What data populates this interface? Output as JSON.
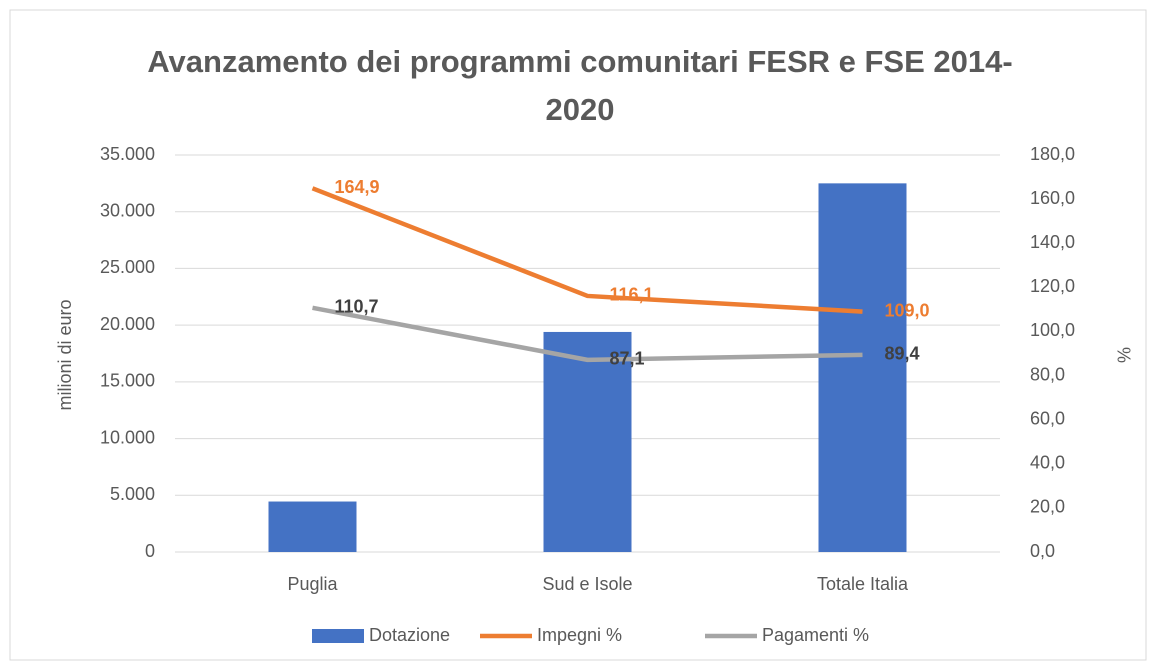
{
  "chart_data": {
    "type": "combo",
    "title": "Avanzamento dei programmi comunitari FESR e FSE 2014-2020",
    "y_label": "milioni di euro",
    "y2_label": "%",
    "categories": [
      "Puglia",
      "Sud e Isole",
      "Totale Italia"
    ],
    "series": [
      {
        "name": "Dotazione",
        "type": "bar",
        "color": "#4472c4",
        "values": [
          4450,
          19400,
          32500
        ]
      },
      {
        "name": "Impegni %",
        "type": "line",
        "axis": "y2",
        "color": "#ed7d31",
        "values": [
          164.9,
          116.1,
          109.0
        ],
        "value_labels": [
          "164,9",
          "116,1",
          "109,0"
        ],
        "label_color": "#ed7d31"
      },
      {
        "name": "Pagamenti %",
        "type": "line",
        "axis": "y2",
        "color": "#a5a5a5",
        "values": [
          110.7,
          87.1,
          89.4
        ],
        "value_labels": [
          "110,7",
          "87,1",
          "89,4"
        ],
        "label_color": "#404040"
      }
    ],
    "ylim": [
      0,
      35000
    ],
    "yticks": [
      0,
      {
        "value": 5000,
        "label": "5.000"
      },
      {
        "value": 10000,
        "label": "10.000"
      },
      {
        "value": 15000,
        "label": "15.000"
      },
      {
        "value": 20000,
        "label": "20.000"
      },
      {
        "value": 25000,
        "label": "25.000"
      },
      {
        "value": 30000,
        "label": "30.000"
      },
      {
        "value": 35000,
        "label": "35.000"
      }
    ],
    "y2lim": [
      0,
      180
    ],
    "y2ticks": [
      {
        "value": 0,
        "label": "0,0"
      },
      {
        "value": 20,
        "label": "20,0"
      },
      {
        "value": 40,
        "label": "40,0"
      },
      {
        "value": 60,
        "label": "60,0"
      },
      {
        "value": 80,
        "label": "80,0"
      },
      {
        "value": 100,
        "label": "100,0"
      },
      {
        "value": 120,
        "label": "120,0"
      },
      {
        "value": 140,
        "label": "140,0"
      },
      {
        "value": 160,
        "label": "160,0"
      },
      {
        "value": 180,
        "label": "180,0"
      }
    ],
    "grid": true,
    "legend": "bottom"
  }
}
